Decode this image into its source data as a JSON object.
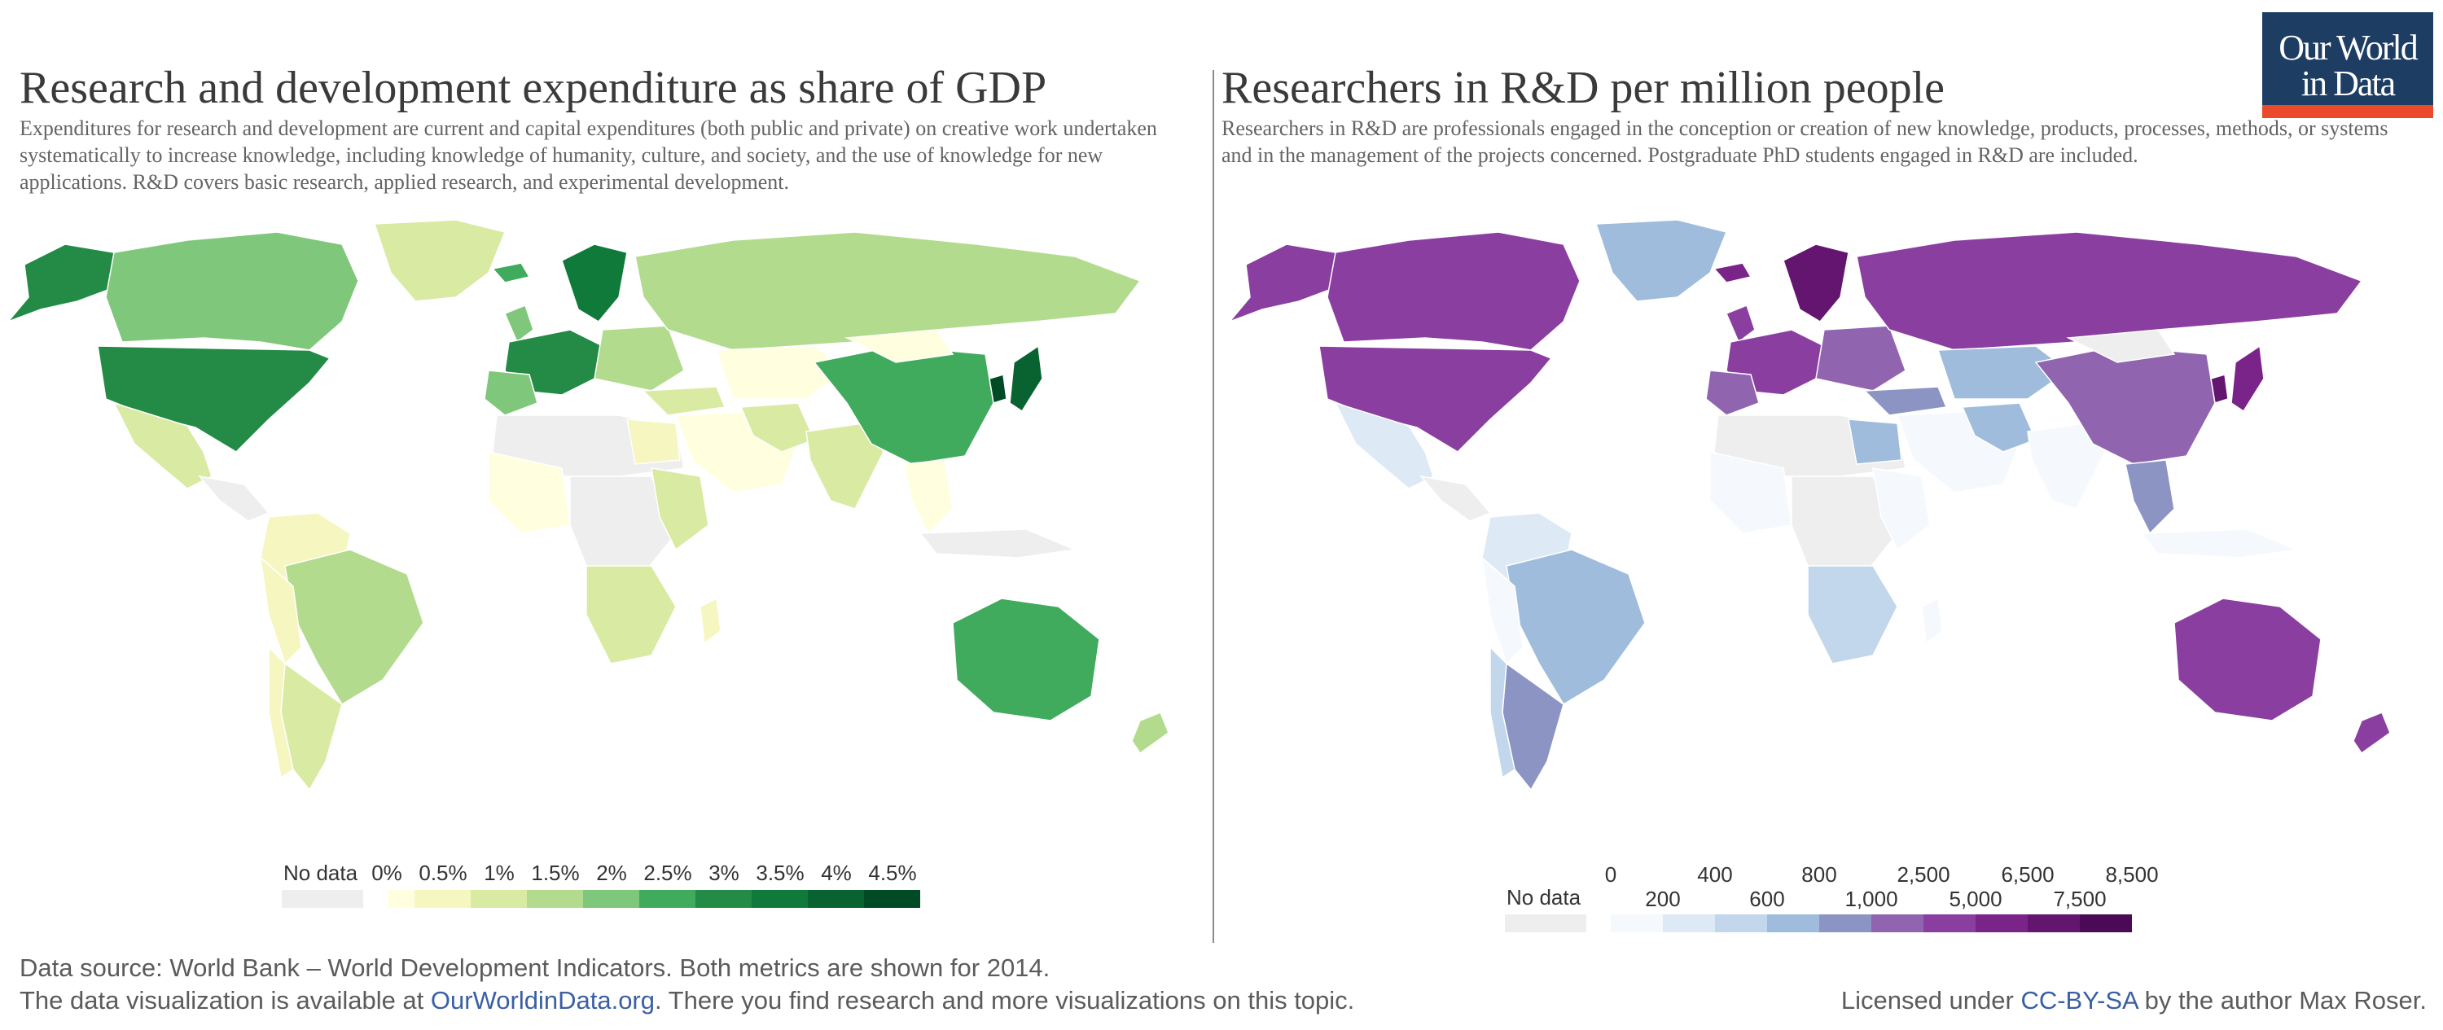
{
  "logo": {
    "line1": "Our World",
    "line2": "in Data"
  },
  "left": {
    "title": "Research and development expenditure as share of GDP",
    "subtitle": "Expenditures for research and development are current and capital expenditures (both public and private) on creative work undertaken systematically to increase knowledge, including knowledge of humanity, culture, and society, and the use of knowledge for new applications. R&D covers basic research, applied research, and experimental development.",
    "legend": {
      "no_data_label": "No data",
      "no_data_color": "#eeeeee",
      "ticks": [
        "0%",
        "0.5%",
        "1%",
        "1.5%",
        "2%",
        "2.5%",
        "3%",
        "3.5%",
        "4%",
        "4.5%"
      ],
      "colors": [
        "#ffffe0",
        "#f6f6c0",
        "#d9eaa3",
        "#b2db8e",
        "#7fc77b",
        "#41ab5d",
        "#238b45",
        "#0f7a3a",
        "#086330",
        "#004a25"
      ]
    }
  },
  "right": {
    "title": "Researchers in R&D per million people",
    "subtitle": "Researchers in R&D are professionals engaged in the conception or creation of new knowledge, products, processes, methods, or systems and in the management of the projects concerned. Postgraduate PhD students engaged in R&D are included.",
    "legend": {
      "no_data_label": "No data",
      "no_data_color": "#eeeeee",
      "ticks_upper": [
        "0",
        "400",
        "800",
        "2,500",
        "6,500",
        "8,500"
      ],
      "ticks_lower": [
        "200",
        "600",
        "1,000",
        "5,000",
        "7,500"
      ],
      "colors": [
        "#f5f9fd",
        "#dde9f5",
        "#c2d7ec",
        "#9fbcdc",
        "#8c94c4",
        "#9164b0",
        "#8a3fa0",
        "#7a2489",
        "#64156f",
        "#4a0a55"
      ]
    }
  },
  "footer": {
    "source": "Data source: World Bank – World Development Indicators. Both metrics are shown for 2014.",
    "viz_prefix": "The data visualization is available at ",
    "viz_link": "OurWorldinData.org",
    "viz_suffix": ". There you find research and more visualizations on this topic.",
    "license_prefix": "Licensed under ",
    "license_link": "CC-BY-SA",
    "license_suffix": " by the author Max Roser."
  }
}
